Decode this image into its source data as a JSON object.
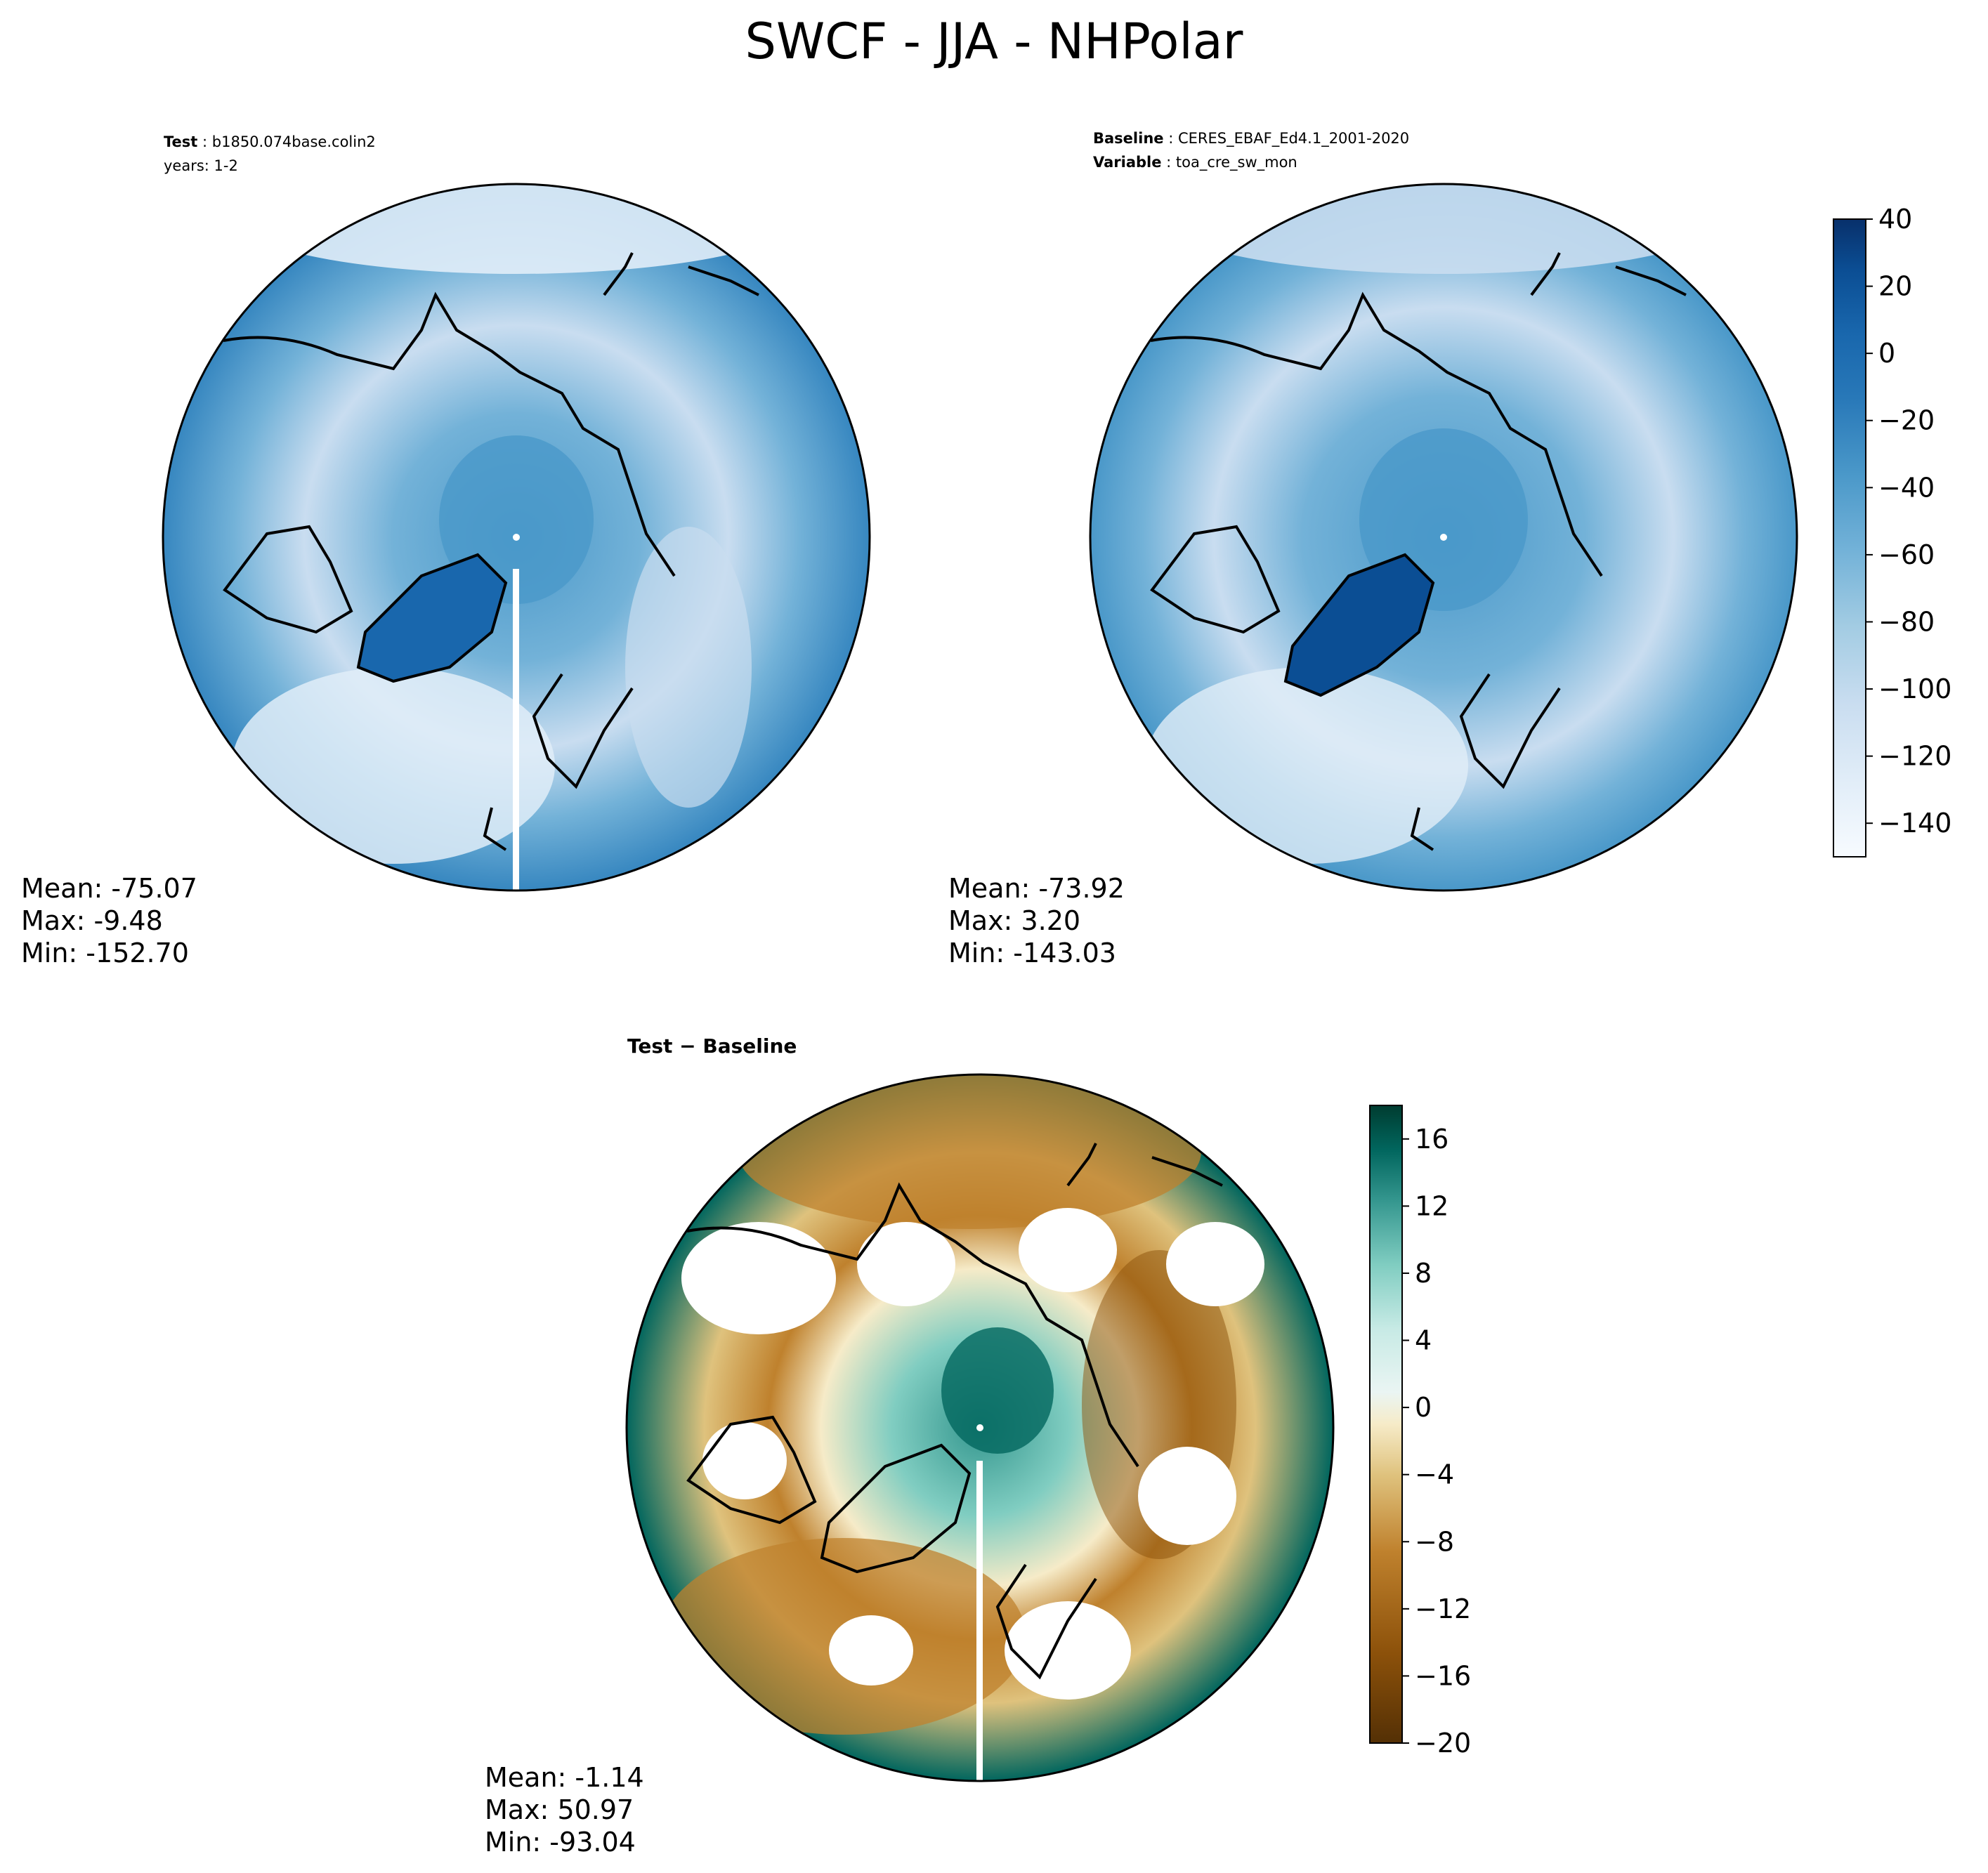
{
  "title": "SWCF - JJA - NHPolar",
  "chart_data": [
    {
      "type": "heatmap",
      "projection": "north-polar-stereographic",
      "header": [
        {
          "key": "Test",
          "value": "b1850.074base.colin2"
        },
        {
          "key": "",
          "value": "years: 1-2"
        }
      ],
      "stats": {
        "mean": "Mean: -75.07",
        "max": "Max: -9.48",
        "min": "Min: -152.70"
      },
      "colormap": "Blues",
      "shared_colorbar": {
        "min": -150,
        "max": 40,
        "ticks": [
          "40",
          "20",
          "0",
          "−20",
          "−40",
          "−60",
          "−80",
          "−100",
          "−120",
          "−140"
        ]
      }
    },
    {
      "type": "heatmap",
      "projection": "north-polar-stereographic",
      "header": [
        {
          "key": "Baseline",
          "value": "CERES_EBAF_Ed4.1_2001-2020"
        },
        {
          "key": "Variable",
          "value": "toa_cre_sw_mon"
        }
      ],
      "stats": {
        "mean": "Mean: -73.92",
        "max": "Max:  3.20",
        "min": "Min: -143.03"
      },
      "colormap": "Blues"
    },
    {
      "type": "heatmap",
      "projection": "north-polar-stereographic",
      "title": "Test − Baseline",
      "stats": {
        "mean": "Mean: -1.14",
        "max": "Max: 50.97",
        "min": "Min: -93.04"
      },
      "colormap": "BrBG",
      "colorbar": {
        "min": -20,
        "max": 18,
        "ticks": [
          "16",
          "12",
          "8",
          "4",
          "0",
          "−4",
          "−8",
          "−12",
          "−16",
          "−20"
        ]
      }
    }
  ],
  "colors": {
    "blues": [
      "#f7fbff",
      "#e1edf8",
      "#c9ddf0",
      "#a3cce3",
      "#73b2d8",
      "#4a98c9",
      "#2878b8",
      "#1967ad",
      "#0b4e94",
      "#08306b"
    ],
    "brbg_neg": [
      "#f6ebc8",
      "#dfc27d",
      "#bf812d",
      "#8c510a",
      "#543005"
    ],
    "brbg_pos": [
      "#eaf5f3",
      "#c7eae5",
      "#80cdc1",
      "#35978f",
      "#01665e",
      "#003c30"
    ]
  }
}
